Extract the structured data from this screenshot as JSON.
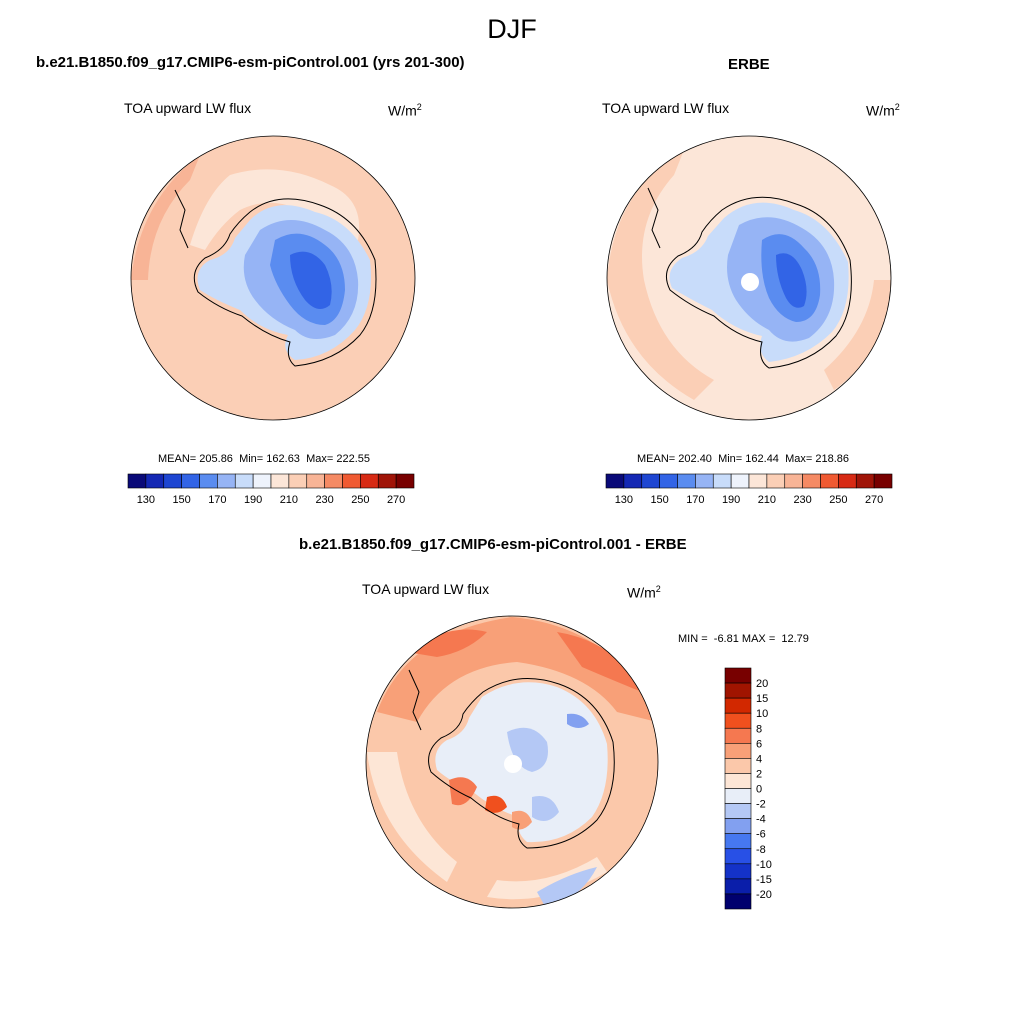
{
  "figure": {
    "season": "DJF",
    "units_base": "W/m",
    "units_exp": "2"
  },
  "colors": {
    "abs_palette": [
      "#0a0a78",
      "#1428b4",
      "#1e46d2",
      "#3264e6",
      "#5a8cf0",
      "#96b4f5",
      "#c8dcfa",
      "#eef3fc",
      "#fce6d8",
      "#fbcfb6",
      "#f8b496",
      "#f58a64",
      "#f05a32",
      "#d72a14",
      "#a01408",
      "#780000"
    ],
    "diff_palette": [
      "#00006e",
      "#0a1eaa",
      "#1432c8",
      "#2850e6",
      "#4678f0",
      "#82a0f0",
      "#b4c8f5",
      "#e8eef8",
      "#fde6d6",
      "#fbc8aa",
      "#f8a078",
      "#f57850",
      "#f0501e",
      "#d22800",
      "#a01400",
      "#780000"
    ],
    "coastline": "#000000",
    "missing": "#ffffff"
  },
  "panels": {
    "model": {
      "title": "b.e21.B1850.f09_g17.CMIP6-esm-piControl.001 (yrs 201-300)",
      "field": "TOA upward LW flux",
      "mean_label": "MEAN=",
      "mean": "205.86",
      "min_label": "Min=",
      "min": "162.63",
      "max_label": "Max=",
      "max": "222.55"
    },
    "obs": {
      "title": "ERBE",
      "field": "TOA upward LW flux",
      "mean_label": "MEAN=",
      "mean": "202.40",
      "min_label": "Min=",
      "min": "162.44",
      "max_label": "Max=",
      "max": "218.86"
    },
    "diff": {
      "title": "b.e21.B1850.f09_g17.CMIP6-esm-piControl.001 - ERBE",
      "field": "TOA upward LW flux",
      "min_label": "MIN =",
      "min": "-6.81",
      "max_label": "MAX =",
      "max": "12.79"
    }
  },
  "colorbars": {
    "abs_labels": [
      "130",
      "150",
      "170",
      "190",
      "210",
      "230",
      "250",
      "270"
    ],
    "diff_labels": [
      "20",
      "15",
      "10",
      "8",
      "6",
      "4",
      "2",
      "0",
      "-2",
      "-4",
      "-6",
      "-8",
      "-10",
      "-15",
      "-20"
    ]
  }
}
